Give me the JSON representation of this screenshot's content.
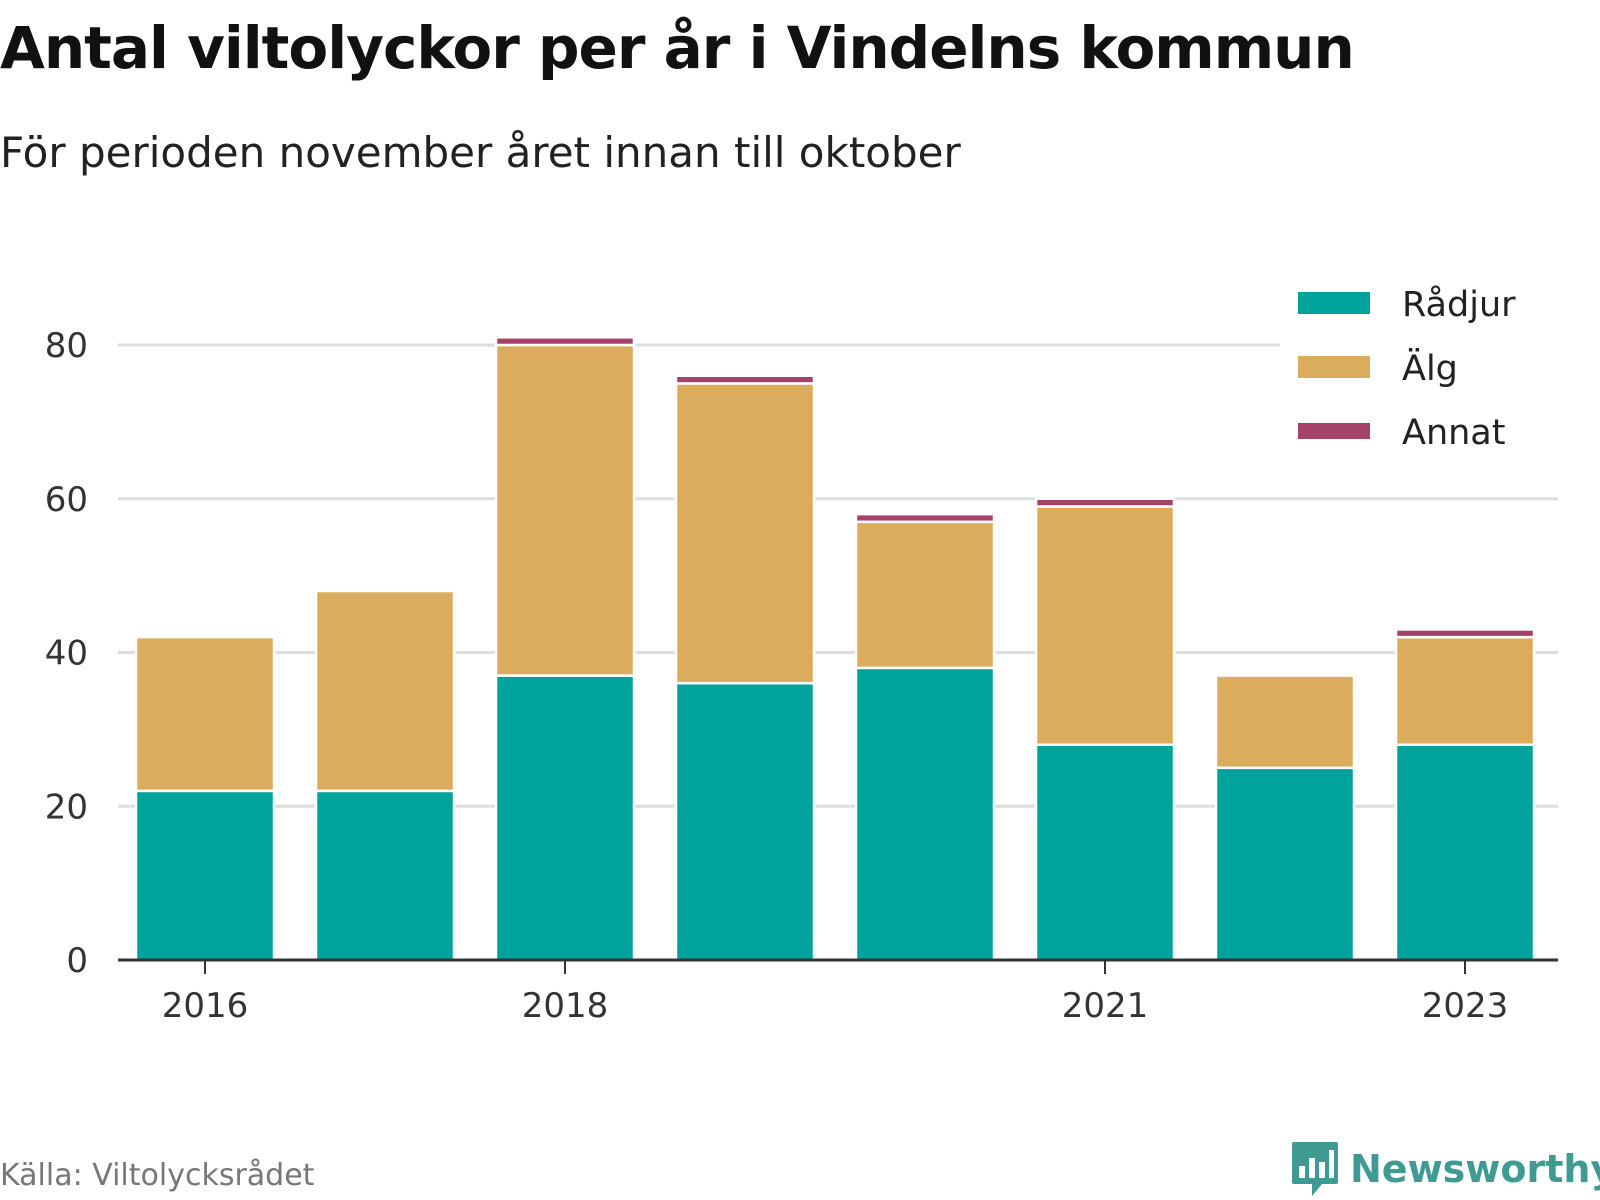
{
  "title": "Antal viltolyckor per år i Vindelns kommun",
  "subtitle": "För perioden november året innan till oktober",
  "source": "Källa: Viltolycksrådet",
  "brand": "Newsworthy",
  "colors": {
    "radjur": "#00a39b",
    "alg": "#dbac5b",
    "annat": "#a6426a",
    "grid": "#dddddd",
    "axis": "#333333",
    "brand": "#3f9a93"
  },
  "chart_data": {
    "type": "bar",
    "stacked": true,
    "categories": [
      "2016",
      "2017",
      "2018",
      "2019",
      "2020",
      "2021",
      "2022",
      "2023"
    ],
    "x_tick_labels": [
      "2016",
      "2018",
      "2021",
      "2023"
    ],
    "series": [
      {
        "name": "Rådjur",
        "color": "#00a39b",
        "values": [
          22,
          22,
          37,
          36,
          38,
          28,
          25,
          28
        ]
      },
      {
        "name": "Älg",
        "color": "#dbac5b",
        "values": [
          20,
          26,
          43,
          39,
          19,
          31,
          12,
          14
        ]
      },
      {
        "name": "Annat",
        "color": "#a6426a",
        "values": [
          0,
          0,
          1,
          1,
          1,
          1,
          0,
          1
        ]
      }
    ],
    "y_ticks": [
      0,
      20,
      40,
      60,
      80
    ],
    "ylim": [
      0,
      86
    ],
    "grid": true,
    "legend": "top-right"
  }
}
